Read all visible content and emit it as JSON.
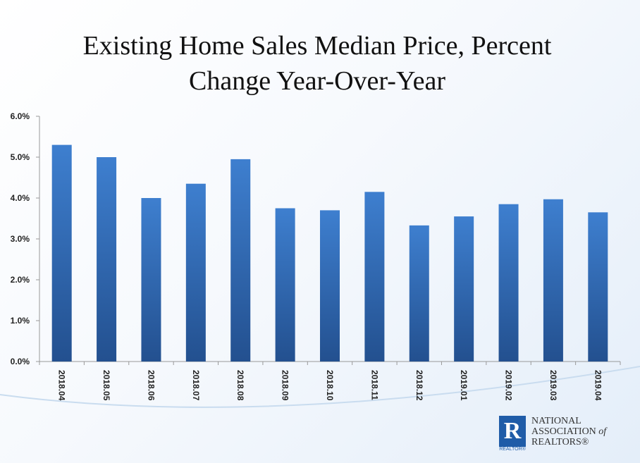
{
  "chart_data": {
    "type": "bar",
    "title": "Existing Home Sales Median Price, Percent Change Year-Over-Year",
    "title_lines": [
      "Existing Home Sales Median Price, Percent",
      "Change Year-Over-Year"
    ],
    "categories": [
      "2018.04",
      "2018.05",
      "2018.06",
      "2018.07",
      "2018.08",
      "2018.09",
      "2018.10",
      "2018.11",
      "2018.12",
      "2019.01",
      "2019.02",
      "2019.03",
      "2019.04"
    ],
    "values": [
      5.3,
      5.0,
      4.0,
      4.35,
      4.95,
      3.75,
      3.7,
      4.15,
      3.33,
      3.55,
      3.85,
      3.97,
      3.65
    ],
    "ylim": [
      0,
      6
    ],
    "yticks": [
      0,
      1,
      2,
      3,
      4,
      5,
      6
    ],
    "ytick_labels": [
      "0.0%",
      "1.0%",
      "2.0%",
      "3.0%",
      "4.0%",
      "5.0%",
      "6.0%"
    ],
    "xlabel": "",
    "ylabel": "",
    "grid": false,
    "legend": "none",
    "bar_color_top": "#3e7fcf",
    "bar_color_bottom": "#23508f"
  },
  "logo": {
    "letter": "R",
    "realtor": "REALTOR®",
    "line1": "NATIONAL",
    "line2a": "ASSOCIATION",
    "line2b": "of",
    "line3": "REALTORS®",
    "color": "#1f5ca8"
  }
}
